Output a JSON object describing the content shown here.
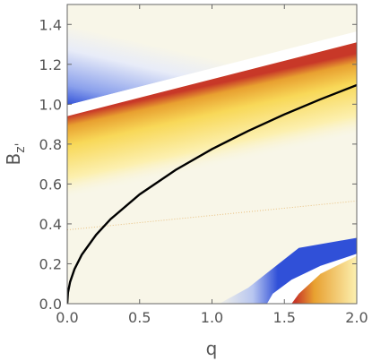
{
  "chart_data": {
    "type": "heatmap",
    "title": "",
    "xlabel": "q",
    "ylabel": "B",
    "ylabel_sub": "z'",
    "xlim": [
      0,
      2
    ],
    "ylim": [
      0,
      1.5
    ],
    "x_ticks": [
      {
        "value": 0,
        "label": "0.0"
      },
      {
        "value": 0.5,
        "label": "0.5"
      },
      {
        "value": 1,
        "label": "1.0"
      },
      {
        "value": 1.5,
        "label": "1.5"
      },
      {
        "value": 2,
        "label": "2.0"
      }
    ],
    "y_ticks": [
      {
        "value": 0,
        "label": "0.0"
      },
      {
        "value": 0.2,
        "label": "0.2"
      },
      {
        "value": 0.4,
        "label": "0.4"
      },
      {
        "value": 0.6,
        "label": "0.6"
      },
      {
        "value": 0.8,
        "label": "0.8"
      },
      {
        "value": 1.0,
        "label": "1.0"
      },
      {
        "value": 1.2,
        "label": "1.2"
      },
      {
        "value": 1.4,
        "label": "1.4"
      }
    ],
    "grid": false,
    "colors": {
      "background": "#f8f6e8",
      "pale_yellow": "#fcf0b0",
      "yellow": "#f8d858",
      "orange": "#e8a030",
      "red": "#c83828",
      "blue": "#3050d8",
      "light_blue": "#c8d4f4",
      "curve": "#000000",
      "frame": "#666666"
    },
    "curve": {
      "name": "",
      "x": [
        0,
        0.005,
        0.02,
        0.05,
        0.1,
        0.2,
        0.3,
        0.5,
        0.75,
        1.0,
        1.25,
        1.5,
        1.75,
        2.0
      ],
      "y": [
        0,
        0.055,
        0.109,
        0.173,
        0.245,
        0.346,
        0.424,
        0.548,
        0.671,
        0.775,
        0.866,
        0.949,
        1.025,
        1.096
      ]
    },
    "upper_band": {
      "lower_edge": {
        "x": [
          0,
          2
        ],
        "y": [
          0.94,
          1.31
        ]
      },
      "upper_edge": {
        "x": [
          0,
          2
        ],
        "y": [
          0.975,
          1.345
        ]
      }
    },
    "faint_line": {
      "x": [
        0,
        2
      ],
      "y": [
        0.37,
        0.515
      ]
    },
    "lower_right_region": {
      "blue_edge": {
        "x": [
          1.38,
          1.42,
          1.55,
          1.75,
          2.0
        ],
        "y": [
          0.0,
          0.05,
          0.12,
          0.19,
          0.25
        ]
      },
      "white_edge": {
        "x": [
          1.55,
          1.6,
          1.75,
          2.0
        ],
        "y": [
          0.0,
          0.05,
          0.15,
          0.24
        ]
      }
    }
  }
}
